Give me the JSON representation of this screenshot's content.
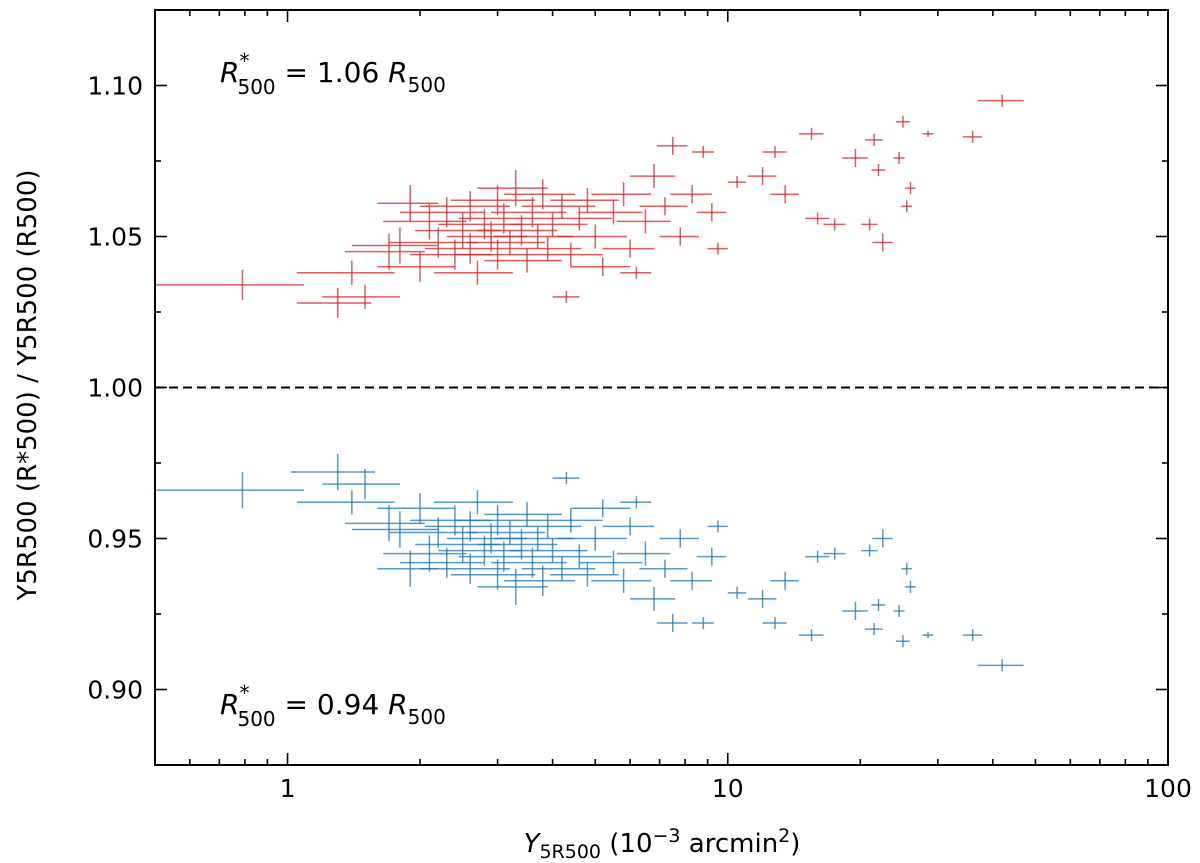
{
  "chart_data": {
    "type": "scatter",
    "x_scale": "log",
    "xlim": [
      0.5,
      100
    ],
    "ylim": [
      0.875,
      1.125
    ],
    "xticks": [
      {
        "value": 1,
        "label": "1"
      },
      {
        "value": 10,
        "label": "10"
      },
      {
        "value": 100,
        "label": "100"
      }
    ],
    "yticks": [
      {
        "value": 0.9,
        "label": "0.90"
      },
      {
        "value": 0.95,
        "label": "0.95"
      },
      {
        "value": 1.0,
        "label": "1.00"
      },
      {
        "value": 1.05,
        "label": "1.05"
      },
      {
        "value": 1.1,
        "label": "1.10"
      }
    ],
    "xlabel": {
      "main": "Y",
      "sub": "5R500",
      "rest": " (10",
      "sup": "−3",
      "rest2": " arcmin",
      "sup2": "2",
      "end": ")"
    },
    "ylabel": {
      "text": "Y5R500 (R*500) / Y5R500 (R500)"
    },
    "reference_line": {
      "y": 1.0,
      "style": "dashed",
      "color": "#000000"
    },
    "annotations": [
      {
        "name": "upper-annotation",
        "position": "top-left",
        "prefix": "R",
        "sup": "*",
        "sub": "500",
        "middle": " = 1.06 ",
        "suffix": "R",
        "suffix_sub": "500"
      },
      {
        "name": "lower-annotation",
        "position": "bottom-left",
        "prefix": "R",
        "sup": "*",
        "sub": "500",
        "middle": " = 0.94 ",
        "suffix": "R",
        "suffix_sub": "500"
      }
    ],
    "series": [
      {
        "name": "R*500 = 1.06 R500",
        "color": "#d62728",
        "points": [
          [
            0.79,
            1.034,
            0.3,
            0.005
          ],
          [
            1.3,
            1.028,
            0.25,
            0.005
          ],
          [
            1.5,
            1.03,
            0.3,
            0.004
          ],
          [
            1.4,
            1.038,
            0.35,
            0.004
          ],
          [
            1.7,
            1.045,
            0.35,
            0.006
          ],
          [
            1.9,
            1.061,
            0.3,
            0.006
          ],
          [
            1.8,
            1.047,
            0.4,
            0.006
          ],
          [
            2.0,
            1.04,
            0.4,
            0.005
          ],
          [
            2.1,
            1.055,
            0.45,
            0.006
          ],
          [
            2.2,
            1.048,
            0.5,
            0.005
          ],
          [
            2.3,
            1.058,
            0.5,
            0.005
          ],
          [
            2.4,
            1.044,
            0.5,
            0.005
          ],
          [
            2.5,
            1.052,
            0.55,
            0.006
          ],
          [
            2.6,
            1.06,
            0.6,
            0.005
          ],
          [
            2.6,
            1.046,
            0.55,
            0.005
          ],
          [
            2.7,
            1.038,
            0.55,
            0.004
          ],
          [
            2.8,
            1.054,
            0.6,
            0.005
          ],
          [
            2.9,
            1.05,
            0.6,
            0.005
          ],
          [
            3.0,
            1.062,
            0.65,
            0.005
          ],
          [
            3.0,
            1.044,
            0.6,
            0.005
          ],
          [
            3.1,
            1.056,
            0.65,
            0.005
          ],
          [
            3.2,
            1.048,
            0.65,
            0.004
          ],
          [
            3.3,
            1.066,
            0.6,
            0.006
          ],
          [
            3.4,
            1.052,
            0.7,
            0.005
          ],
          [
            3.5,
            1.042,
            0.7,
            0.004
          ],
          [
            3.6,
            1.058,
            0.7,
            0.005
          ],
          [
            3.7,
            1.05,
            0.75,
            0.004
          ],
          [
            3.8,
            1.064,
            0.7,
            0.005
          ],
          [
            3.9,
            1.046,
            0.75,
            0.004
          ],
          [
            4.0,
            1.054,
            0.8,
            0.004
          ],
          [
            4.2,
            1.06,
            0.8,
            0.004
          ],
          [
            4.3,
            1.03,
            0.3,
            0.002
          ],
          [
            4.4,
            1.044,
            0.8,
            0.004
          ],
          [
            4.6,
            1.056,
            0.85,
            0.004
          ],
          [
            4.8,
            1.062,
            0.85,
            0.004
          ],
          [
            5.0,
            1.05,
            0.9,
            0.004
          ],
          [
            5.2,
            1.04,
            0.8,
            0.003
          ],
          [
            5.5,
            1.058,
            0.9,
            0.004
          ],
          [
            5.8,
            1.064,
            0.9,
            0.004
          ],
          [
            6.0,
            1.046,
            0.8,
            0.003
          ],
          [
            6.2,
            1.038,
            0.5,
            0.002
          ],
          [
            6.5,
            1.055,
            0.9,
            0.004
          ],
          [
            6.8,
            1.07,
            0.8,
            0.004
          ],
          [
            7.2,
            1.06,
            0.9,
            0.003
          ],
          [
            7.5,
            1.08,
            0.6,
            0.003
          ],
          [
            7.8,
            1.05,
            0.8,
            0.003
          ],
          [
            8.3,
            1.064,
            0.9,
            0.003
          ],
          [
            8.8,
            1.078,
            0.5,
            0.002
          ],
          [
            9.2,
            1.058,
            0.7,
            0.003
          ],
          [
            9.5,
            1.046,
            0.5,
            0.002
          ],
          [
            10.5,
            1.068,
            0.5,
            0.002
          ],
          [
            12.0,
            1.07,
            0.9,
            0.003
          ],
          [
            12.8,
            1.078,
            0.8,
            0.002
          ],
          [
            13.5,
            1.064,
            1.0,
            0.003
          ],
          [
            15.5,
            1.084,
            1.0,
            0.002
          ],
          [
            16.0,
            1.056,
            1.0,
            0.002
          ],
          [
            17.5,
            1.054,
            1.0,
            0.002
          ],
          [
            19.5,
            1.076,
            1.3,
            0.003
          ],
          [
            21.0,
            1.054,
            0.9,
            0.002
          ],
          [
            21.5,
            1.082,
            1.0,
            0.002
          ],
          [
            22.5,
            1.048,
            1.2,
            0.003
          ],
          [
            22.0,
            1.072,
            0.8,
            0.002
          ],
          [
            25.0,
            1.088,
            0.9,
            0.002
          ],
          [
            24.5,
            1.076,
            0.7,
            0.002
          ],
          [
            26.0,
            1.066,
            0.7,
            0.002
          ],
          [
            25.5,
            1.06,
            0.7,
            0.002
          ],
          [
            28.5,
            1.084,
            0.8,
            0.001
          ],
          [
            36.0,
            1.083,
            1.8,
            0.002
          ],
          [
            42.0,
            1.095,
            5.0,
            0.002
          ]
        ]
      },
      {
        "name": "R*500 = 0.94 R500",
        "color": "#1f77b4",
        "points": [
          [
            0.79,
            0.966,
            0.3,
            0.006
          ],
          [
            1.3,
            0.972,
            0.28,
            0.006
          ],
          [
            1.5,
            0.968,
            0.3,
            0.005
          ],
          [
            1.4,
            0.962,
            0.35,
            0.004
          ],
          [
            1.7,
            0.955,
            0.35,
            0.006
          ],
          [
            1.9,
            0.94,
            0.3,
            0.006
          ],
          [
            1.8,
            0.953,
            0.4,
            0.006
          ],
          [
            2.0,
            0.96,
            0.4,
            0.005
          ],
          [
            2.1,
            0.945,
            0.45,
            0.006
          ],
          [
            2.2,
            0.952,
            0.5,
            0.005
          ],
          [
            2.3,
            0.942,
            0.5,
            0.005
          ],
          [
            2.4,
            0.956,
            0.5,
            0.005
          ],
          [
            2.5,
            0.948,
            0.55,
            0.006
          ],
          [
            2.6,
            0.94,
            0.6,
            0.005
          ],
          [
            2.6,
            0.954,
            0.55,
            0.005
          ],
          [
            2.7,
            0.962,
            0.55,
            0.004
          ],
          [
            2.8,
            0.946,
            0.6,
            0.005
          ],
          [
            2.9,
            0.95,
            0.6,
            0.005
          ],
          [
            3.0,
            0.938,
            0.65,
            0.005
          ],
          [
            3.0,
            0.956,
            0.6,
            0.005
          ],
          [
            3.1,
            0.944,
            0.65,
            0.005
          ],
          [
            3.2,
            0.952,
            0.65,
            0.004
          ],
          [
            3.3,
            0.934,
            0.6,
            0.006
          ],
          [
            3.4,
            0.948,
            0.7,
            0.005
          ],
          [
            3.5,
            0.958,
            0.7,
            0.004
          ],
          [
            3.6,
            0.942,
            0.7,
            0.005
          ],
          [
            3.7,
            0.95,
            0.75,
            0.004
          ],
          [
            3.8,
            0.936,
            0.7,
            0.005
          ],
          [
            3.9,
            0.954,
            0.75,
            0.004
          ],
          [
            4.0,
            0.946,
            0.8,
            0.004
          ],
          [
            4.2,
            0.94,
            0.8,
            0.004
          ],
          [
            4.3,
            0.97,
            0.3,
            0.002
          ],
          [
            4.4,
            0.956,
            0.8,
            0.004
          ],
          [
            4.6,
            0.944,
            0.85,
            0.004
          ],
          [
            4.8,
            0.938,
            0.85,
            0.004
          ],
          [
            5.0,
            0.95,
            0.9,
            0.004
          ],
          [
            5.2,
            0.96,
            0.8,
            0.003
          ],
          [
            5.5,
            0.942,
            0.9,
            0.004
          ],
          [
            5.8,
            0.936,
            0.9,
            0.004
          ],
          [
            6.0,
            0.954,
            0.8,
            0.003
          ],
          [
            6.2,
            0.962,
            0.5,
            0.002
          ],
          [
            6.5,
            0.945,
            0.9,
            0.004
          ],
          [
            6.8,
            0.93,
            0.8,
            0.004
          ],
          [
            7.2,
            0.94,
            0.9,
            0.003
          ],
          [
            7.5,
            0.922,
            0.6,
            0.003
          ],
          [
            7.8,
            0.95,
            0.8,
            0.003
          ],
          [
            8.3,
            0.936,
            0.9,
            0.003
          ],
          [
            8.8,
            0.922,
            0.5,
            0.002
          ],
          [
            9.2,
            0.944,
            0.7,
            0.003
          ],
          [
            9.5,
            0.954,
            0.5,
            0.002
          ],
          [
            10.5,
            0.932,
            0.5,
            0.002
          ],
          [
            12.0,
            0.93,
            0.9,
            0.003
          ],
          [
            12.8,
            0.922,
            0.8,
            0.002
          ],
          [
            13.5,
            0.936,
            1.0,
            0.003
          ],
          [
            15.5,
            0.918,
            1.0,
            0.002
          ],
          [
            16.0,
            0.944,
            1.0,
            0.002
          ],
          [
            17.5,
            0.945,
            1.0,
            0.002
          ],
          [
            19.5,
            0.926,
            1.3,
            0.003
          ],
          [
            21.0,
            0.946,
            0.9,
            0.002
          ],
          [
            21.5,
            0.92,
            1.0,
            0.002
          ],
          [
            22.5,
            0.95,
            1.2,
            0.003
          ],
          [
            22.0,
            0.928,
            0.8,
            0.002
          ],
          [
            25.0,
            0.916,
            0.9,
            0.002
          ],
          [
            24.5,
            0.926,
            0.7,
            0.002
          ],
          [
            26.0,
            0.934,
            0.7,
            0.002
          ],
          [
            25.5,
            0.94,
            0.7,
            0.002
          ],
          [
            28.5,
            0.918,
            0.8,
            0.001
          ],
          [
            36.0,
            0.918,
            1.8,
            0.002
          ],
          [
            42.0,
            0.908,
            5.0,
            0.002
          ]
        ]
      }
    ]
  }
}
